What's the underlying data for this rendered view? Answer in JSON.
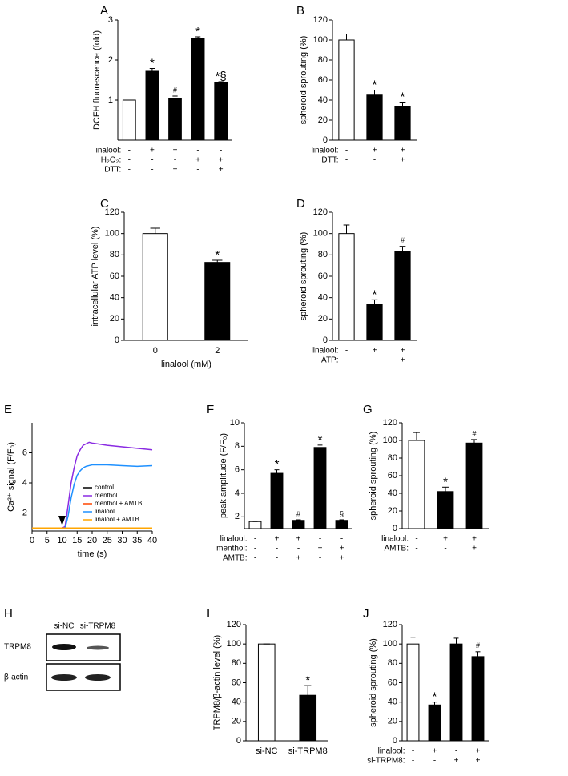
{
  "chart_data": [
    {
      "type": "bar",
      "label": "A",
      "ylabel": "DCFH fluorescence (fold)",
      "categories": [
        null,
        null,
        null,
        null,
        null
      ],
      "values": [
        1,
        1.72,
        1.05,
        2.55,
        1.44
      ],
      "errors": [
        0,
        0.07,
        0.05,
        0.03,
        0.02
      ],
      "annotations": [
        null,
        "*",
        "#",
        "*",
        "*§"
      ],
      "colors": [
        "#ffffff",
        "#000000",
        "#000000",
        "#000000",
        "#000000"
      ],
      "conditions": [
        {
          "name": "linalool:",
          "signs": [
            "-",
            "+",
            "+",
            "-",
            "-"
          ]
        },
        {
          "name": "H₂O₂:",
          "signs": [
            "-",
            "-",
            "-",
            "+",
            "+"
          ]
        },
        {
          "name": "DTT:",
          "signs": [
            "-",
            "-",
            "+",
            "-",
            "+"
          ]
        }
      ],
      "ylim": [
        0,
        3
      ],
      "yticks": [
        1,
        2,
        3
      ]
    },
    {
      "type": "bar",
      "label": "B",
      "ylabel": "spheroid sprouting (%)",
      "categories": [
        null,
        null,
        null
      ],
      "values": [
        100,
        45,
        34
      ],
      "errors": [
        6,
        5,
        4
      ],
      "annotations": [
        null,
        "*",
        "*"
      ],
      "colors": [
        "#ffffff",
        "#000000",
        "#000000"
      ],
      "conditions": [
        {
          "name": "linalool:",
          "signs": [
            "-",
            "+",
            "+"
          ]
        },
        {
          "name": "DTT:",
          "signs": [
            "-",
            "-",
            "+"
          ]
        }
      ],
      "ylim": [
        0,
        120
      ],
      "yticks": [
        0,
        20,
        40,
        60,
        80,
        100,
        120
      ]
    },
    {
      "type": "bar",
      "label": "C",
      "ylabel": "intracellular ATP level (%)",
      "xlabel": "linalool (mM)",
      "categories": [
        "0",
        "2"
      ],
      "values": [
        100,
        73
      ],
      "errors": [
        5,
        2
      ],
      "annotations": [
        null,
        "*"
      ],
      "colors": [
        "#ffffff",
        "#000000"
      ],
      "ylim": [
        0,
        120
      ],
      "yticks": [
        0,
        20,
        40,
        60,
        80,
        100,
        120
      ]
    },
    {
      "type": "bar",
      "label": "D",
      "ylabel": "spheroid sprouting (%)",
      "categories": [
        null,
        null,
        null
      ],
      "values": [
        100,
        34,
        83
      ],
      "errors": [
        8,
        4,
        5
      ],
      "annotations": [
        null,
        "*",
        "#"
      ],
      "colors": [
        "#ffffff",
        "#000000",
        "#000000"
      ],
      "conditions": [
        {
          "name": "linalool:",
          "signs": [
            "-",
            "+",
            "+"
          ]
        },
        {
          "name": "ATP:",
          "signs": [
            "-",
            "-",
            "+"
          ]
        }
      ],
      "ylim": [
        0,
        120
      ],
      "yticks": [
        0,
        20,
        40,
        60,
        80,
        100,
        120
      ]
    },
    {
      "type": "line",
      "label": "E",
      "xlabel": "time (s)",
      "ylabel": "Ca²⁺ signal (F/F₀)",
      "x": [
        0,
        5,
        10,
        11,
        12,
        13,
        14,
        15,
        16,
        17,
        18,
        19,
        20,
        25,
        30,
        35,
        40
      ],
      "series": [
        {
          "name": "control",
          "color": "#000000",
          "values": [
            1,
            1,
            1,
            1,
            1,
            1,
            1,
            1,
            1,
            1,
            1,
            1,
            1,
            1,
            1,
            1,
            1
          ]
        },
        {
          "name": "menthol",
          "color": "#8a2be2",
          "values": [
            1,
            1,
            1,
            1.1,
            2.5,
            4,
            5,
            5.8,
            6.2,
            6.5,
            6.6,
            6.7,
            6.65,
            6.5,
            6.4,
            6.3,
            6.2
          ]
        },
        {
          "name": "menthol + AMTB",
          "color": "#ff4500",
          "values": [
            1,
            1,
            1,
            1,
            1,
            1,
            1,
            1,
            1,
            1,
            1,
            1,
            1,
            1,
            1,
            1,
            1
          ]
        },
        {
          "name": "linalool",
          "color": "#1e90ff",
          "values": [
            1,
            1,
            1,
            1,
            1.8,
            3,
            3.9,
            4.5,
            4.8,
            5,
            5.1,
            5.15,
            5.2,
            5.2,
            5.15,
            5.1,
            5.15
          ]
        },
        {
          "name": "linalool + AMTB",
          "color": "#ffa500",
          "values": [
            1,
            1,
            1,
            1,
            1,
            1,
            1,
            1,
            1,
            1,
            1,
            1,
            1,
            1,
            1,
            1,
            1
          ]
        }
      ],
      "xlim": [
        0,
        40
      ],
      "xticks": [
        0,
        5,
        10,
        15,
        20,
        25,
        30,
        35,
        40
      ],
      "ylim": [
        0.8,
        8
      ],
      "yticks": [
        2,
        4,
        6
      ],
      "legend": "lower right"
    },
    {
      "type": "bar",
      "label": "F",
      "ylabel": "peak amplitude (F/F₀)",
      "categories": [
        null,
        null,
        null,
        null,
        null
      ],
      "values": [
        1.6,
        5.7,
        1.7,
        7.9,
        1.7
      ],
      "errors": [
        0,
        0.3,
        0.05,
        0.2,
        0.05
      ],
      "annotations": [
        null,
        "*",
        "#",
        "*",
        "§"
      ],
      "colors": [
        "#ffffff",
        "#000000",
        "#000000",
        "#000000",
        "#000000"
      ],
      "conditions": [
        {
          "name": "linalool:",
          "signs": [
            "-",
            "+",
            "+",
            "-",
            "-"
          ]
        },
        {
          "name": "menthol:",
          "signs": [
            "-",
            "-",
            "-",
            "+",
            "+"
          ]
        },
        {
          "name": "AMTB:",
          "signs": [
            "-",
            "-",
            "+",
            "-",
            "+"
          ]
        }
      ],
      "ylim": [
        1,
        10
      ],
      "yticks": [
        2,
        4,
        6,
        8,
        10
      ]
    },
    {
      "type": "bar",
      "label": "G",
      "ylabel": "spheroid sprouting (%)",
      "categories": [
        null,
        null,
        null
      ],
      "values": [
        100,
        42,
        97
      ],
      "errors": [
        9,
        5,
        4
      ],
      "annotations": [
        null,
        "*",
        "#"
      ],
      "colors": [
        "#ffffff",
        "#000000",
        "#000000"
      ],
      "conditions": [
        {
          "name": "linalool:",
          "signs": [
            "-",
            "+",
            "+"
          ]
        },
        {
          "name": "AMTB:",
          "signs": [
            "-",
            "-",
            "+"
          ]
        }
      ],
      "ylim": [
        0,
        120
      ],
      "yticks": [
        0,
        20,
        40,
        60,
        80,
        100,
        120
      ]
    },
    {
      "type": "bar",
      "label": "I",
      "ylabel": "TRPM8/β-actin level (%)",
      "categories": [
        "si-NC",
        "si-TRPM8"
      ],
      "values": [
        100,
        47
      ],
      "errors": [
        0,
        10
      ],
      "annotations": [
        null,
        "*"
      ],
      "colors": [
        "#ffffff",
        "#000000"
      ],
      "ylim": [
        0,
        120
      ],
      "yticks": [
        0,
        20,
        40,
        60,
        80,
        100,
        120
      ]
    },
    {
      "type": "bar",
      "label": "J",
      "ylabel": "spheroid sprouting (%)",
      "categories": [
        null,
        null,
        null,
        null
      ],
      "values": [
        100,
        37,
        100,
        87
      ],
      "errors": [
        7,
        3,
        6,
        5
      ],
      "annotations": [
        null,
        "*",
        null,
        "#"
      ],
      "colors": [
        "#ffffff",
        "#000000",
        "#000000",
        "#000000"
      ],
      "conditions": [
        {
          "name": "linalool:",
          "signs": [
            "-",
            "+",
            "-",
            "+"
          ]
        },
        {
          "name": "si-TRPM8:",
          "signs": [
            "-",
            "-",
            "+",
            "+"
          ]
        }
      ],
      "ylim": [
        0,
        120
      ],
      "yticks": [
        0,
        20,
        40,
        60,
        80,
        100,
        120
      ]
    }
  ],
  "blot": {
    "label": "H",
    "lanes": [
      "si-NC",
      "si-TRPM8"
    ],
    "rows": [
      "TRPM8",
      "β-actin"
    ]
  }
}
